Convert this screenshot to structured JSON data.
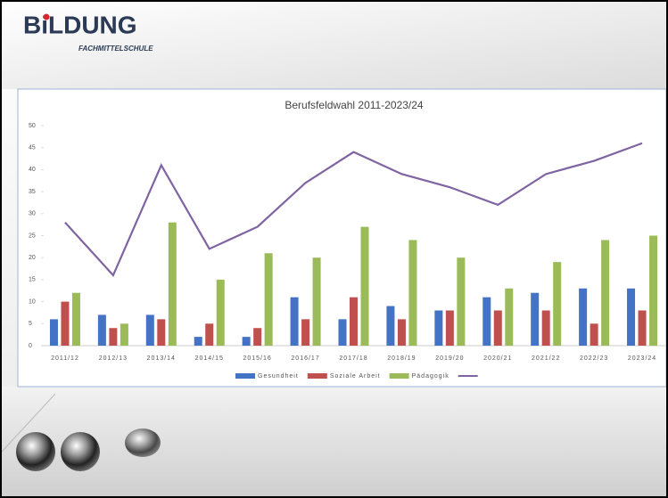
{
  "header": {
    "logo": "BiLDUNG",
    "subtitle": "FACHMITTELSCHULE"
  },
  "chart_data": {
    "type": "bar",
    "title": "Berufsfeldwahl 2011-2023/24",
    "categories": [
      "2011/12",
      "2012/13",
      "2013/14",
      "2014/15",
      "2015/16",
      "2016/17",
      "2017/18",
      "2018/19",
      "2019/20",
      "2020/21",
      "2021/22",
      "2022/23",
      "2023/24"
    ],
    "series": [
      {
        "name": "Gesundheit",
        "color": "#4472c4",
        "values": [
          6,
          7,
          7,
          2,
          2,
          11,
          6,
          9,
          8,
          11,
          12,
          13,
          13
        ]
      },
      {
        "name": "Soziale Arbeit",
        "color": "#c0504d",
        "values": [
          10,
          4,
          6,
          5,
          4,
          6,
          11,
          6,
          8,
          8,
          8,
          5,
          8
        ]
      },
      {
        "name": "Pädagogik",
        "color": "#9bbb59",
        "values": [
          12,
          5,
          28,
          15,
          21,
          20,
          27,
          24,
          20,
          13,
          19,
          24,
          25
        ]
      },
      {
        "type": "line",
        "color": "#8064a2",
        "values": [
          28,
          16,
          41,
          22,
          27,
          37,
          44,
          39,
          36,
          32,
          39,
          42,
          46
        ]
      }
    ],
    "ylim": [
      0,
      50
    ],
    "yticks": [
      0,
      5,
      10,
      15,
      20,
      25,
      30,
      35,
      40,
      45,
      50
    ],
    "legend": "bottom"
  }
}
